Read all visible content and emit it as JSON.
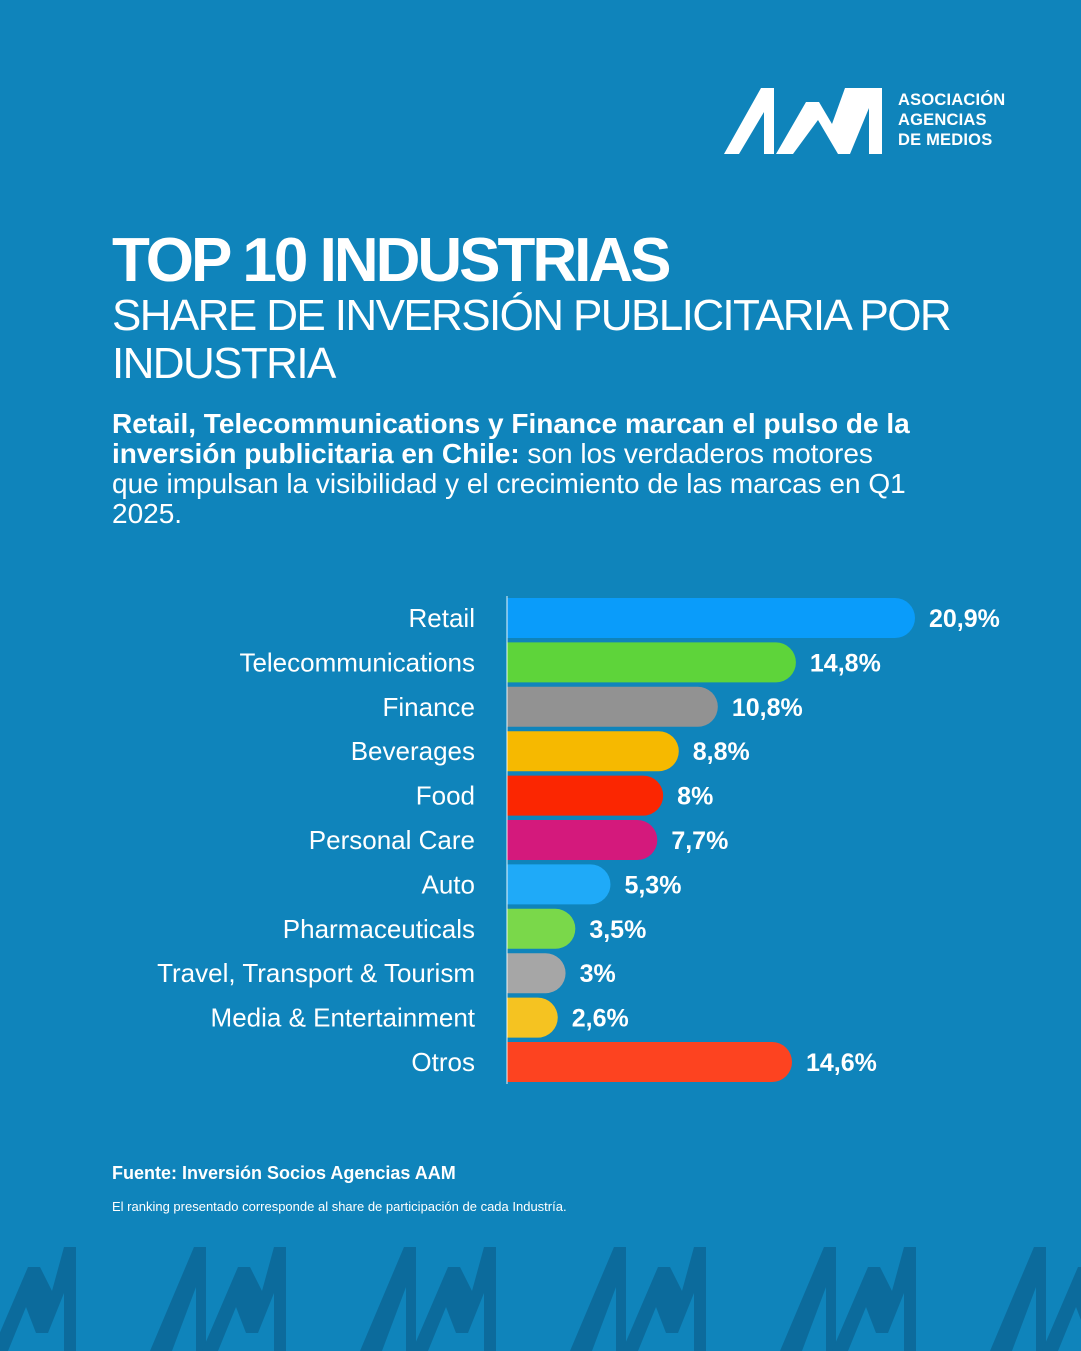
{
  "brand": {
    "logo_letters": "AAM",
    "name_lines": [
      "ASOCIACIÓN",
      "AGENCIAS",
      "DE MEDIOS"
    ]
  },
  "header": {
    "title": "TOP 10 INDUSTRIAS",
    "subtitle": "SHARE DE INVERSIÓN PUBLICITARIA POR INDUSTRIA"
  },
  "lead": {
    "bold": "Retail, Telecommunications y Finance marcan el pulso de la inversión publicitaria en Chile:",
    "regular": " son los verdaderos motores que impulsan la visibilidad y el crecimiento de las marcas en Q1 2025."
  },
  "chart_data": {
    "type": "bar",
    "orientation": "horizontal",
    "categories": [
      "Retail",
      "Telecommunications",
      "Finance",
      "Beverages",
      "Food",
      "Personal Care",
      "Auto",
      "Pharmaceuticals",
      "Travel, Transport & Tourism",
      "Media & Entertainment",
      "Otros"
    ],
    "values": [
      20.9,
      14.8,
      10.8,
      8.8,
      8,
      7.7,
      5.3,
      3.5,
      3,
      2.6,
      14.6
    ],
    "data_labels": [
      "20,9%",
      "14,8%",
      "10,8%",
      "8,8%",
      "8%",
      "7,7%",
      "5,3%",
      "3,5%",
      "3%",
      "2,6%",
      "14,6%"
    ],
    "colors": [
      "#0a9cfa",
      "#5ed43a",
      "#929292",
      "#f6b900",
      "#fb2601",
      "#d4197c",
      "#1faaf8",
      "#7ad84a",
      "#a6a6a6",
      "#f5c321",
      "#fd4320"
    ],
    "unit": "%",
    "title": "",
    "xlabel": "",
    "ylabel": "",
    "xlim": [
      0,
      20.9
    ],
    "grid": false,
    "legend": "none"
  },
  "footer": {
    "source": "Fuente: Inversión Socios Agencias AAM",
    "note": "El ranking presentado corresponde al share de participación de cada Industría."
  },
  "colors": {
    "background": "#0f84bb",
    "pattern": "#0c6b9c",
    "text": "#ffffff"
  }
}
